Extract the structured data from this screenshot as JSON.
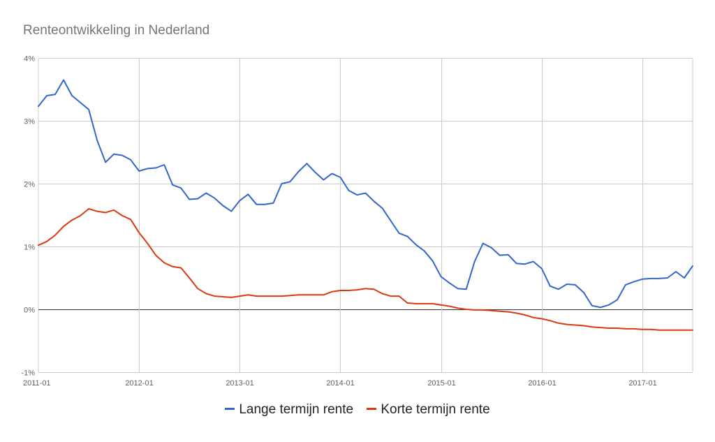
{
  "chart_data": {
    "type": "line",
    "title": "Renteontwikkeling in Nederland",
    "xlabel": "",
    "ylabel": "",
    "ylim": [
      -1,
      4
    ],
    "y_ticks": [
      {
        "value": 4,
        "label": "4%"
      },
      {
        "value": 3,
        "label": "3%"
      },
      {
        "value": 2,
        "label": "2%"
      },
      {
        "value": 1,
        "label": "1%"
      },
      {
        "value": 0,
        "label": "0%"
      },
      {
        "value": -1,
        "label": "-1%"
      }
    ],
    "x_ticks": [
      "2011-01",
      "2012-01",
      "2013-01",
      "2014-01",
      "2015-01",
      "2016-01",
      "2017-01"
    ],
    "x_start": "2011-01",
    "x_end": "2017-07",
    "grid": true,
    "legend_position": "bottom",
    "series": [
      {
        "name": "Lange termijn rente",
        "color": "#3366cc",
        "values": [
          3.23,
          3.4,
          3.42,
          3.65,
          3.4,
          3.29,
          3.18,
          2.69,
          2.34,
          2.47,
          2.45,
          2.38,
          2.2,
          2.24,
          2.25,
          2.3,
          1.98,
          1.93,
          1.75,
          1.76,
          1.85,
          1.77,
          1.65,
          1.56,
          1.73,
          1.83,
          1.67,
          1.67,
          1.69,
          2.0,
          2.03,
          2.19,
          2.32,
          2.18,
          2.06,
          2.16,
          2.1,
          1.89,
          1.82,
          1.85,
          1.72,
          1.61,
          1.41,
          1.21,
          1.16,
          1.03,
          0.93,
          0.77,
          0.52,
          0.42,
          0.33,
          0.32,
          0.76,
          1.05,
          0.98,
          0.86,
          0.87,
          0.73,
          0.72,
          0.76,
          0.65,
          0.37,
          0.32,
          0.4,
          0.39,
          0.27,
          0.06,
          0.03,
          0.07,
          0.15,
          0.39,
          0.44,
          0.48,
          0.49,
          0.49,
          0.5,
          0.6,
          0.5,
          0.69
        ]
      },
      {
        "name": "Korte termijn rente",
        "color": "#dc3912",
        "values": [
          1.02,
          1.08,
          1.18,
          1.32,
          1.42,
          1.49,
          1.6,
          1.56,
          1.54,
          1.58,
          1.49,
          1.43,
          1.22,
          1.05,
          0.86,
          0.74,
          0.68,
          0.66,
          0.5,
          0.33,
          0.25,
          0.21,
          0.2,
          0.19,
          0.21,
          0.23,
          0.21,
          0.21,
          0.21,
          0.21,
          0.22,
          0.23,
          0.23,
          0.23,
          0.23,
          0.28,
          0.3,
          0.3,
          0.31,
          0.33,
          0.32,
          0.25,
          0.21,
          0.21,
          0.1,
          0.09,
          0.09,
          0.09,
          0.07,
          0.05,
          0.02,
          0.0,
          -0.01,
          -0.01,
          -0.02,
          -0.03,
          -0.04,
          -0.06,
          -0.09,
          -0.13,
          -0.15,
          -0.18,
          -0.22,
          -0.24,
          -0.25,
          -0.26,
          -0.28,
          -0.29,
          -0.3,
          -0.3,
          -0.31,
          -0.31,
          -0.32,
          -0.32,
          -0.33,
          -0.33,
          -0.33,
          -0.33,
          -0.33
        ]
      }
    ]
  }
}
